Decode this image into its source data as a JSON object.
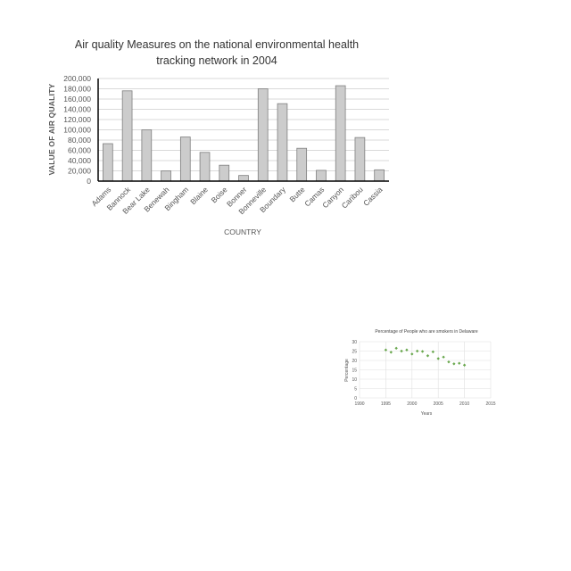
{
  "chart_data": [
    {
      "type": "bar",
      "title_lines": [
        "Air quality Measures on the national environmental health",
        "tracking network in 2004"
      ],
      "xlabel": "COUNTRY",
      "ylabel": "VALUE OF AIR QUALITY",
      "categories": [
        "Adams",
        "Bannock",
        "Bear Lake",
        "Benewah",
        "Bingham",
        "Blaine",
        "Boise",
        "Bonner",
        "Bonneville",
        "Boundary",
        "Butte",
        "Camas",
        "Canyon",
        "Caribou",
        "Cassia"
      ],
      "values": [
        73000,
        176000,
        100000,
        20000,
        86000,
        56000,
        31000,
        11000,
        180000,
        151000,
        64000,
        21000,
        186000,
        85000,
        22000
      ],
      "ylim": [
        0,
        200000
      ],
      "yticks": [
        "0",
        "20,000",
        "40,000",
        "60,000",
        "80,000",
        "100,000",
        "120,000",
        "140,000",
        "160,000",
        "180,000",
        "200,000"
      ],
      "grid": true,
      "legend": "none",
      "colors": {
        "bar_fill": "#cccccc",
        "bar_stroke": "#7f7f7f",
        "grid": "#d9d9d9",
        "axis": "#000000"
      }
    },
    {
      "type": "scatter",
      "title": "Percentage of People who are smokers in Delaware",
      "xlabel": "Years",
      "ylabel": "Percentage",
      "xlim": [
        1990,
        2015
      ],
      "ylim": [
        0,
        30
      ],
      "xticks": [
        "1990",
        "1995",
        "2000",
        "2005",
        "2010",
        "2015"
      ],
      "yticks": [
        "0",
        "5",
        "10",
        "15",
        "20",
        "25",
        "30"
      ],
      "x": [
        1995,
        1996,
        1997,
        1998,
        1999,
        2000,
        2001,
        2002,
        2003,
        2004,
        2005,
        2006,
        2007,
        2008,
        2009,
        2010
      ],
      "y": [
        25.6,
        24.4,
        26.5,
        25,
        25.6,
        23.4,
        25,
        24.8,
        22.5,
        24.6,
        21,
        21.8,
        19.2,
        18.2,
        18.5,
        17.5
      ],
      "grid": true,
      "legend": "none",
      "colors": {
        "marker": "#6aa84f",
        "grid": "#e0e0e0"
      }
    }
  ]
}
